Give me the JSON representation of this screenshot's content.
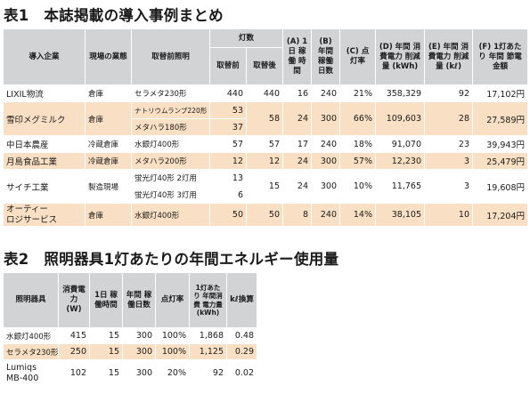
{
  "table1": {
    "title": "表1　本誌掲載の導入事例まとめ",
    "headers": {
      "company": "導入企業",
      "work": "現場の業態",
      "fixture": "取替前照明",
      "lamps": "灯数",
      "lamps_before": "取替前",
      "lamps_after": "取替後",
      "a": "(A) 1日 稼働 時間",
      "b": "(B) 年間 稼働 日数",
      "c": "(C) 点灯率",
      "d": "(D) 年間 消費電力 削減量 (kWh)",
      "e": "(E) 年間 消費電力 削減量 (kℓ)",
      "f": "(F) 1灯あたり 年間 節電金額"
    },
    "rows": [
      {
        "company": "LIXIL物流",
        "work": "倉庫",
        "fixtures": [
          "セラメタ230形"
        ],
        "before": [
          "440"
        ],
        "after": "440",
        "a": "16",
        "b": "240",
        "c": "21%",
        "d": "358,329",
        "e": "92",
        "f": "17,102円"
      },
      {
        "company": "雪印メグミルク",
        "work": "倉庫",
        "fixtures": [
          "ナトリウムランプ220形",
          "メタハラ180形"
        ],
        "before": [
          "53",
          "37"
        ],
        "after": "58",
        "a": "24",
        "b": "300",
        "c": "66%",
        "d": "109,603",
        "e": "28",
        "f": "27,589円"
      },
      {
        "company": "中日本農産",
        "work": "冷蔵倉庫",
        "fixtures": [
          "水銀灯400形"
        ],
        "before": [
          "57"
        ],
        "after": "57",
        "a": "17",
        "b": "240",
        "c": "18%",
        "d": "91,070",
        "e": "23",
        "f": "39,943円"
      },
      {
        "company": "月島食品工業",
        "work": "冷蔵倉庫",
        "fixtures": [
          "メタハラ200形"
        ],
        "before": [
          "12"
        ],
        "after": "12",
        "a": "24",
        "b": "300",
        "c": "57%",
        "d": "12,230",
        "e": "3",
        "f": "25,479円"
      },
      {
        "company": "サイチ工業",
        "work": "製造現場",
        "fixtures": [
          "蛍光灯40形 2灯用",
          "蛍光灯40形 3灯用"
        ],
        "before": [
          "13",
          "6"
        ],
        "after": "15",
        "a": "24",
        "b": "300",
        "c": "10%",
        "d": "11,765",
        "e": "3",
        "f": "19,608円"
      },
      {
        "company": "オーティー\nロジサービス",
        "work": "倉庫",
        "fixtures": [
          "水銀灯400形"
        ],
        "before": [
          "50"
        ],
        "after": "50",
        "a": "8",
        "b": "240",
        "c": "14%",
        "d": "38,105",
        "e": "10",
        "f": "17,204円"
      }
    ]
  },
  "table2": {
    "title": "表2　照明器具1灯あたりの年間エネルギー使用量",
    "headers": {
      "fixture": "照明器具",
      "power": "消費電力 (W)",
      "hours": "1日 稼働時間",
      "days": "年間 稼働日数",
      "rate": "点灯率",
      "energy": "1灯あたり 年間消費 電力量 (kWh)",
      "kl": "kℓ換算"
    },
    "rows": [
      {
        "fixture": "水銀灯400形",
        "power": "415",
        "hours": "15",
        "days": "300",
        "rate": "100%",
        "energy": "1,868",
        "kl": "0.48"
      },
      {
        "fixture": "セラメタ230形",
        "power": "250",
        "hours": "15",
        "days": "300",
        "rate": "100%",
        "energy": "1,125",
        "kl": "0.29"
      },
      {
        "fixture": "Lumiqs\nMB-400",
        "power": "102",
        "hours": "15",
        "days": "300",
        "rate": "20%",
        "energy": "92",
        "kl": "0.02"
      }
    ]
  }
}
